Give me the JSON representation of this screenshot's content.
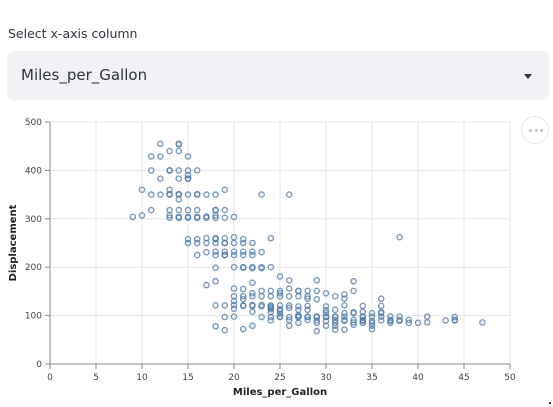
{
  "select": {
    "label": "Select x-axis column",
    "value": "Miles_per_Gallon"
  },
  "chart_data": {
    "type": "scatter",
    "title": "",
    "xlabel": "Miles_per_Gallon",
    "ylabel": "Displacement",
    "xlim": [
      0,
      50
    ],
    "ylim": [
      0,
      500
    ],
    "xticks": [
      0,
      5,
      10,
      15,
      20,
      25,
      30,
      35,
      40,
      45,
      50
    ],
    "yticks": [
      0,
      100,
      200,
      300,
      400,
      500
    ],
    "grid": true,
    "marker": "open-circle",
    "color": "#4c78a8",
    "points": [
      [
        9,
        304
      ],
      [
        10,
        307
      ],
      [
        10,
        360
      ],
      [
        11,
        318
      ],
      [
        11,
        400
      ],
      [
        11,
        350
      ],
      [
        11,
        429
      ],
      [
        12,
        455
      ],
      [
        12,
        383
      ],
      [
        12,
        350
      ],
      [
        12,
        429
      ],
      [
        13,
        440
      ],
      [
        13,
        400
      ],
      [
        13,
        350
      ],
      [
        13,
        318
      ],
      [
        13,
        307
      ],
      [
        13,
        302
      ],
      [
        13,
        360
      ],
      [
        13,
        351
      ],
      [
        13,
        400
      ],
      [
        14,
        455
      ],
      [
        14,
        440
      ],
      [
        14,
        400
      ],
      [
        14,
        350
      ],
      [
        14,
        318
      ],
      [
        14,
        304
      ],
      [
        14,
        302
      ],
      [
        14,
        351
      ],
      [
        14,
        340
      ],
      [
        14,
        383
      ],
      [
        14,
        454
      ],
      [
        15,
        400
      ],
      [
        15,
        350
      ],
      [
        15,
        318
      ],
      [
        15,
        304
      ],
      [
        15,
        302
      ],
      [
        15,
        390
      ],
      [
        15,
        383
      ],
      [
        15,
        429
      ],
      [
        15,
        258
      ],
      [
        15,
        250
      ],
      [
        15,
        383
      ],
      [
        16,
        400
      ],
      [
        16,
        350
      ],
      [
        16,
        318
      ],
      [
        16,
        304
      ],
      [
        16,
        302
      ],
      [
        16,
        258
      ],
      [
        16,
        250
      ],
      [
        16,
        225
      ],
      [
        16,
        351
      ],
      [
        17,
        302
      ],
      [
        17,
        350
      ],
      [
        17,
        260
      ],
      [
        17,
        231
      ],
      [
        17,
        250
      ],
      [
        17,
        163
      ],
      [
        17,
        305
      ],
      [
        18,
        302
      ],
      [
        18,
        318
      ],
      [
        18,
        350
      ],
      [
        18,
        250
      ],
      [
        18,
        258
      ],
      [
        18,
        232
      ],
      [
        18,
        225
      ],
      [
        18,
        199
      ],
      [
        18,
        121
      ],
      [
        18,
        171
      ],
      [
        18,
        78
      ],
      [
        18,
        260
      ],
      [
        18,
        318
      ],
      [
        18,
        307
      ],
      [
        19,
        232
      ],
      [
        19,
        250
      ],
      [
        19,
        302
      ],
      [
        19,
        225
      ],
      [
        19,
        360
      ],
      [
        19,
        318
      ],
      [
        19,
        260
      ],
      [
        19,
        121
      ],
      [
        19,
        97
      ],
      [
        19,
        70
      ],
      [
        19,
        225
      ],
      [
        19,
        250
      ],
      [
        20,
        200
      ],
      [
        20,
        232
      ],
      [
        20,
        262
      ],
      [
        20,
        250
      ],
      [
        20,
        140
      ],
      [
        20,
        122
      ],
      [
        20,
        156
      ],
      [
        20,
        98
      ],
      [
        20,
        130
      ],
      [
        20,
        304
      ],
      [
        20,
        225
      ],
      [
        20,
        114
      ],
      [
        21,
        200
      ],
      [
        21,
        232
      ],
      [
        21,
        225
      ],
      [
        21,
        250
      ],
      [
        21,
        140
      ],
      [
        21,
        120
      ],
      [
        21,
        134
      ],
      [
        21,
        199
      ],
      [
        21,
        258
      ],
      [
        21,
        121
      ],
      [
        21,
        72
      ],
      [
        21,
        155
      ],
      [
        22,
        232
      ],
      [
        22,
        200
      ],
      [
        22,
        250
      ],
      [
        22,
        225
      ],
      [
        22,
        140
      ],
      [
        22,
        122
      ],
      [
        22,
        146
      ],
      [
        22,
        79
      ],
      [
        22,
        108
      ],
      [
        22,
        198
      ],
      [
        22,
        168
      ],
      [
        22,
        120
      ],
      [
        23,
        140
      ],
      [
        23,
        151
      ],
      [
        23,
        122
      ],
      [
        23,
        119
      ],
      [
        23,
        97
      ],
      [
        23,
        350
      ],
      [
        23,
        231
      ],
      [
        23,
        200
      ],
      [
        23,
        198
      ],
      [
        24,
        140
      ],
      [
        24,
        107
      ],
      [
        24,
        113
      ],
      [
        24,
        116
      ],
      [
        24,
        119
      ],
      [
        24,
        97
      ],
      [
        24,
        151
      ],
      [
        24,
        200
      ],
      [
        24,
        121
      ],
      [
        24,
        260
      ],
      [
        24,
        90
      ],
      [
        25,
        140
      ],
      [
        25,
        151
      ],
      [
        25,
        113
      ],
      [
        25,
        110
      ],
      [
        25,
        104
      ],
      [
        25,
        98
      ],
      [
        25,
        146
      ],
      [
        25,
        121
      ],
      [
        25,
        97
      ],
      [
        25,
        181
      ],
      [
        26,
        97
      ],
      [
        26,
        79
      ],
      [
        26,
        116
      ],
      [
        26,
        121
      ],
      [
        26,
        140
      ],
      [
        26,
        156
      ],
      [
        26,
        91
      ],
      [
        26,
        350
      ],
      [
        26,
        173
      ],
      [
        27,
        97
      ],
      [
        27,
        140
      ],
      [
        27,
        151
      ],
      [
        27,
        112
      ],
      [
        27,
        85
      ],
      [
        27,
        119
      ],
      [
        27,
        98
      ],
      [
        27,
        101
      ],
      [
        27,
        151
      ],
      [
        28,
        97
      ],
      [
        28,
        98
      ],
      [
        28,
        120
      ],
      [
        28,
        151
      ],
      [
        28,
        91
      ],
      [
        28,
        135
      ],
      [
        28,
        112
      ],
      [
        28,
        140
      ],
      [
        29,
        97
      ],
      [
        29,
        98
      ],
      [
        29,
        68
      ],
      [
        29,
        85
      ],
      [
        29,
        90
      ],
      [
        29,
        134
      ],
      [
        29,
        173
      ],
      [
        29,
        151
      ],
      [
        30,
        97
      ],
      [
        30,
        98
      ],
      [
        30,
        79
      ],
      [
        30,
        89
      ],
      [
        30,
        105
      ],
      [
        30,
        146
      ],
      [
        30,
        111
      ],
      [
        30,
        119
      ],
      [
        31,
        97
      ],
      [
        31,
        98
      ],
      [
        31,
        91
      ],
      [
        31,
        85
      ],
      [
        31,
        79
      ],
      [
        31,
        71
      ],
      [
        31,
        112
      ],
      [
        31,
        140
      ],
      [
        32,
        91
      ],
      [
        32,
        71
      ],
      [
        32,
        98
      ],
      [
        32,
        105
      ],
      [
        32,
        89
      ],
      [
        32,
        135
      ],
      [
        32,
        144
      ],
      [
        32,
        121
      ],
      [
        33,
        91
      ],
      [
        33,
        86
      ],
      [
        33,
        81
      ],
      [
        33,
        105
      ],
      [
        33,
        107
      ],
      [
        33,
        151
      ],
      [
        33,
        171
      ],
      [
        34,
        97
      ],
      [
        34,
        98
      ],
      [
        34,
        89
      ],
      [
        34,
        108
      ],
      [
        34,
        85
      ],
      [
        34,
        91
      ],
      [
        34,
        120
      ],
      [
        35,
        98
      ],
      [
        35,
        105
      ],
      [
        35,
        85
      ],
      [
        35,
        89
      ],
      [
        35,
        72
      ],
      [
        35,
        79
      ],
      [
        36,
        98
      ],
      [
        36,
        105
      ],
      [
        36,
        90
      ],
      [
        36,
        107
      ],
      [
        36,
        135
      ],
      [
        36,
        120
      ],
      [
        37,
        91
      ],
      [
        37,
        98
      ],
      [
        37,
        85
      ],
      [
        37,
        89
      ],
      [
        38,
        98
      ],
      [
        38,
        262
      ],
      [
        38,
        91
      ],
      [
        38,
        89
      ],
      [
        39,
        85
      ],
      [
        39,
        91
      ],
      [
        40,
        85
      ],
      [
        41,
        86
      ],
      [
        41,
        98
      ],
      [
        43,
        90
      ],
      [
        44,
        97
      ],
      [
        44,
        90
      ],
      [
        44,
        91
      ],
      [
        47,
        86
      ]
    ]
  }
}
